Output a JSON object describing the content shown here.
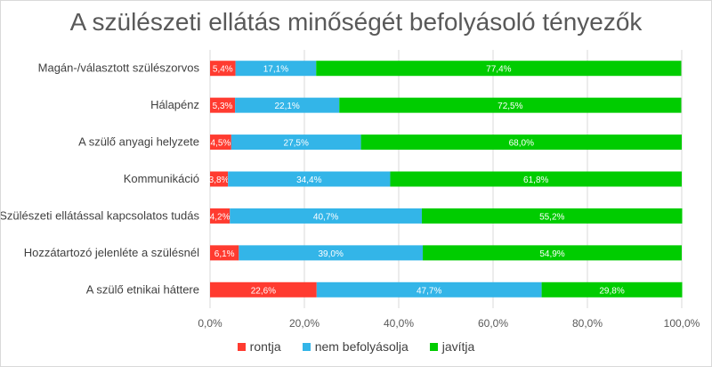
{
  "chart_data": {
    "type": "bar",
    "orientation": "horizontal",
    "stacked": "percent",
    "title": "A szülészeti ellátás minőségét befolyásoló tényezők",
    "categories": [
      "Magán-/választott szülészorvos",
      "Hálapénz",
      "A szülő anyagi helyzete",
      "Kommunikáció",
      "Szülészeti ellátással kapcsolatos tudás",
      "Hozzátartozó jelenléte a szülésnél",
      "A szülő etnikai háttere"
    ],
    "series": [
      {
        "name": "rontja",
        "color": "#ff3b30",
        "values": [
          5.4,
          5.3,
          4.5,
          3.8,
          4.2,
          6.1,
          22.6
        ],
        "labels": [
          "5,4%",
          "5,3%",
          "4,5%",
          "3,8%",
          "4,2%",
          "6,1%",
          "22,6%"
        ]
      },
      {
        "name": "nem befolyásolja",
        "color": "#33b5e8",
        "values": [
          17.1,
          22.1,
          27.5,
          34.4,
          40.7,
          39.0,
          47.7
        ],
        "labels": [
          "17,1%",
          "22,1%",
          "27,5%",
          "34,4%",
          "40,7%",
          "39,0%",
          "47,7%"
        ]
      },
      {
        "name": "javítja",
        "color": "#00cc00",
        "values": [
          77.4,
          72.5,
          68.0,
          61.8,
          55.2,
          54.9,
          29.8
        ],
        "labels": [
          "77,4%",
          "72,5%",
          "68,0%",
          "61,8%",
          "55,2%",
          "54,9%",
          "29,8%"
        ]
      }
    ],
    "xlim": [
      0,
      100
    ],
    "xticks": [
      "0,0%",
      "20,0%",
      "40,0%",
      "60,0%",
      "80,0%",
      "100,0%"
    ],
    "grid": true,
    "legend_position": "bottom"
  }
}
